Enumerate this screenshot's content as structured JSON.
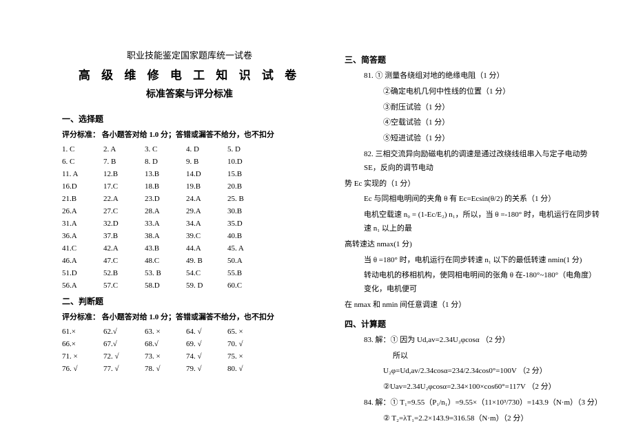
{
  "header": {
    "top": "职业技能鉴定国家题库统一试卷",
    "main": "高 级 维 修 电 工 知 识 试 卷",
    "sub": "标准答案与评分标准"
  },
  "sections": {
    "s1": "一、选择题",
    "s2": "二、判断题",
    "s3": "三、简答题",
    "s4": "四、计算题"
  },
  "scoring": {
    "s1": "评分标准：  各小题答对给 1.0 分；答错或漏答不给分，也不扣分",
    "s2": "评分标准：  各小题答对给 1.0 分；答错或漏答不给分，也不扣分"
  },
  "choice": [
    [
      "1. C",
      "2. A",
      "3. C",
      "4. D",
      "5. D"
    ],
    [
      "6. C",
      "7. B",
      "8. D",
      "9. B",
      "10.D"
    ],
    [
      "11. A",
      "12.B",
      "13.B",
      "14.D",
      "15.B"
    ],
    [
      "16.D",
      "17.C",
      "18.B",
      "19.B",
      "20.B"
    ],
    [
      "21.B",
      "22.A",
      "23.D",
      "24.A",
      "25. B"
    ],
    [
      "26.A",
      "27.C",
      "28.A",
      "29.A",
      "30.B"
    ],
    [
      "31.A",
      "32.D",
      "33.A",
      "34.A",
      "35.D"
    ],
    [
      "36.A",
      "37.B",
      "38.A",
      "39.C",
      "40.B"
    ],
    [
      "41.C",
      "42.A",
      "43.B",
      "44.A",
      "45. A"
    ],
    [
      "46.A",
      "47.C",
      "48.C",
      "49. B",
      "50.A"
    ],
    [
      "51.D",
      "52.B",
      "53. B",
      "54.C",
      "55.B"
    ],
    [
      "56.A",
      "57.C",
      "58.D",
      "59. D",
      "60.C"
    ]
  ],
  "judge": [
    [
      "61.×",
      "62.√",
      "63. ×",
      "64. √",
      "65. ×"
    ],
    [
      "66.×",
      "67.√",
      "68.√",
      "69. √",
      "70. √"
    ],
    [
      "71. ×",
      "72. √",
      "73. ×",
      "74. √",
      "75. ×"
    ],
    [
      "76. √",
      "77. √",
      "78. √",
      "79. √",
      "80. √"
    ]
  ],
  "q81": {
    "head": "81.  ① 测量各绕组对地的绝缘电阻（1 分）",
    "l2": "②确定电机几何中性线的位置（1 分）",
    "l3": "③耐压试验（1 分）",
    "l4": "④空载试验（1 分）",
    "l5": "⑤短进试验（1 分）"
  },
  "q82": {
    "l1": "82. 三相交流异向励磁电机的调速是通过改绕线组串入与定子电动势 SE，反向的调节电动",
    "l2": "势 Ec 实现的（1 分）",
    "l3": "Ec 与同相电明间的夹角 θ 有 Ec=Ecsin(θ/2) 的关系（1 分）",
    "l4": "电机空载速 n₀ = (1-Ec/E₂) n₁，所以，当 θ =-180° 时，电机运行在同步转速 n₁ 以上的最",
    "l5": "高转速达 nmax(1 分)",
    "l6": "当 θ =180° 时，电机运行在同步转速 n₁ 以下的最低转速 nmin(1 分)",
    "l7": "转动电机的移相机构，使同相电明间的张角 θ 在-180°~180°（电角度）变化，电机便可",
    "l8": "在 nmax 和 nmin 间任意调速（1 分）"
  },
  "q83": {
    "l1": "83. 解：① 因为 Ud,av=2.34U₂φcosα （2 分）",
    "l2": "所以",
    "l3": "U₂φ=Ud,av/2.34cosα=234/2.34cos0°=100V （2 分）",
    "l4": "②Uav=2.34U₂φcosα=2.34×100×cos60°=117V （2 分）"
  },
  "q84": {
    "l1": "84. 解：① T₁=9.55（P₁/n₁）=9.55×（11×10³/730）=143.9（N·m）（3 分）",
    "l2": "② T₂=λT₁=2.2×143.9=316.58（N·m）（2 分）"
  }
}
